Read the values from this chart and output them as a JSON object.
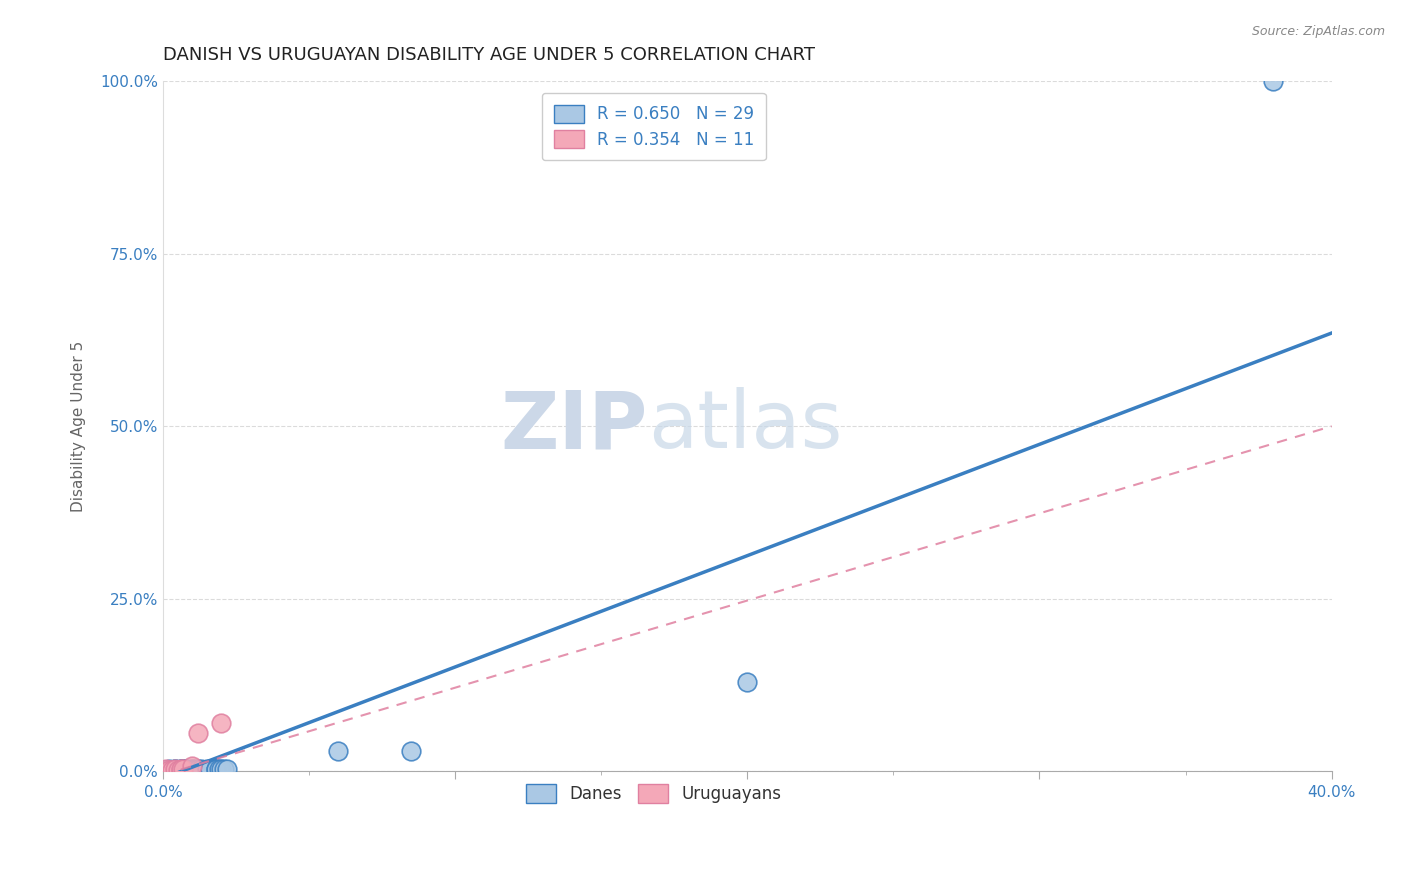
{
  "title": "DANISH VS URUGUAYAN DISABILITY AGE UNDER 5 CORRELATION CHART",
  "source": "Source: ZipAtlas.com",
  "xlabel": "",
  "ylabel": "Disability Age Under 5",
  "xlim": [
    0.0,
    0.4
  ],
  "ylim": [
    0.0,
    1.0
  ],
  "xticks": [
    0.0,
    0.1,
    0.2,
    0.3,
    0.4
  ],
  "xtick_labels": [
    "0.0%",
    "",
    "",
    "",
    "40.0%"
  ],
  "yticks": [
    0.0,
    0.25,
    0.5,
    0.75,
    1.0
  ],
  "ytick_labels": [
    "0.0%",
    "25.0%",
    "50.0%",
    "75.0%",
    "100.0%"
  ],
  "danes_x": [
    0.001,
    0.002,
    0.003,
    0.004,
    0.004,
    0.005,
    0.006,
    0.006,
    0.007,
    0.008,
    0.008,
    0.009,
    0.01,
    0.01,
    0.011,
    0.012,
    0.013,
    0.015,
    0.016,
    0.018,
    0.018,
    0.019,
    0.02,
    0.021,
    0.022,
    0.06,
    0.085,
    0.2,
    0.38
  ],
  "danes_y": [
    0.002,
    0.003,
    0.002,
    0.003,
    0.003,
    0.002,
    0.003,
    0.003,
    0.003,
    0.003,
    0.003,
    0.002,
    0.003,
    0.003,
    0.003,
    0.003,
    0.003,
    0.004,
    0.003,
    0.004,
    0.004,
    0.003,
    0.004,
    0.004,
    0.003,
    0.03,
    0.03,
    0.13,
    1.0
  ],
  "uruguayans_x": [
    0.001,
    0.002,
    0.003,
    0.004,
    0.005,
    0.006,
    0.006,
    0.007,
    0.01,
    0.012,
    0.02
  ],
  "uruguayans_y": [
    0.003,
    0.002,
    0.002,
    0.003,
    0.002,
    0.002,
    0.003,
    0.003,
    0.008,
    0.055,
    0.07
  ],
  "danes_line_x0": 0.0,
  "danes_line_y0": -0.01,
  "danes_line_x1": 0.4,
  "danes_line_y1": 0.635,
  "uru_line_x0": 0.0,
  "uru_line_y0": -0.005,
  "uru_line_x1": 0.4,
  "uru_line_y1": 0.5,
  "danes_R": 0.65,
  "danes_N": 29,
  "uruguayans_R": 0.354,
  "uruguayans_N": 11,
  "danes_color": "#aac8e4",
  "danes_line_color": "#3a7fc1",
  "uruguayans_color": "#f4a8b8",
  "uruguayans_line_color": "#e080a0",
  "legend_color": "#3a7fc1",
  "grid_color": "#cccccc",
  "background_color": "#ffffff",
  "title_fontsize": 13,
  "axis_label_fontsize": 11,
  "tick_fontsize": 11,
  "legend_fontsize": 12,
  "watermark_zip": "ZIP",
  "watermark_atlas": "atlas",
  "watermark_color": "#ccd8e8"
}
